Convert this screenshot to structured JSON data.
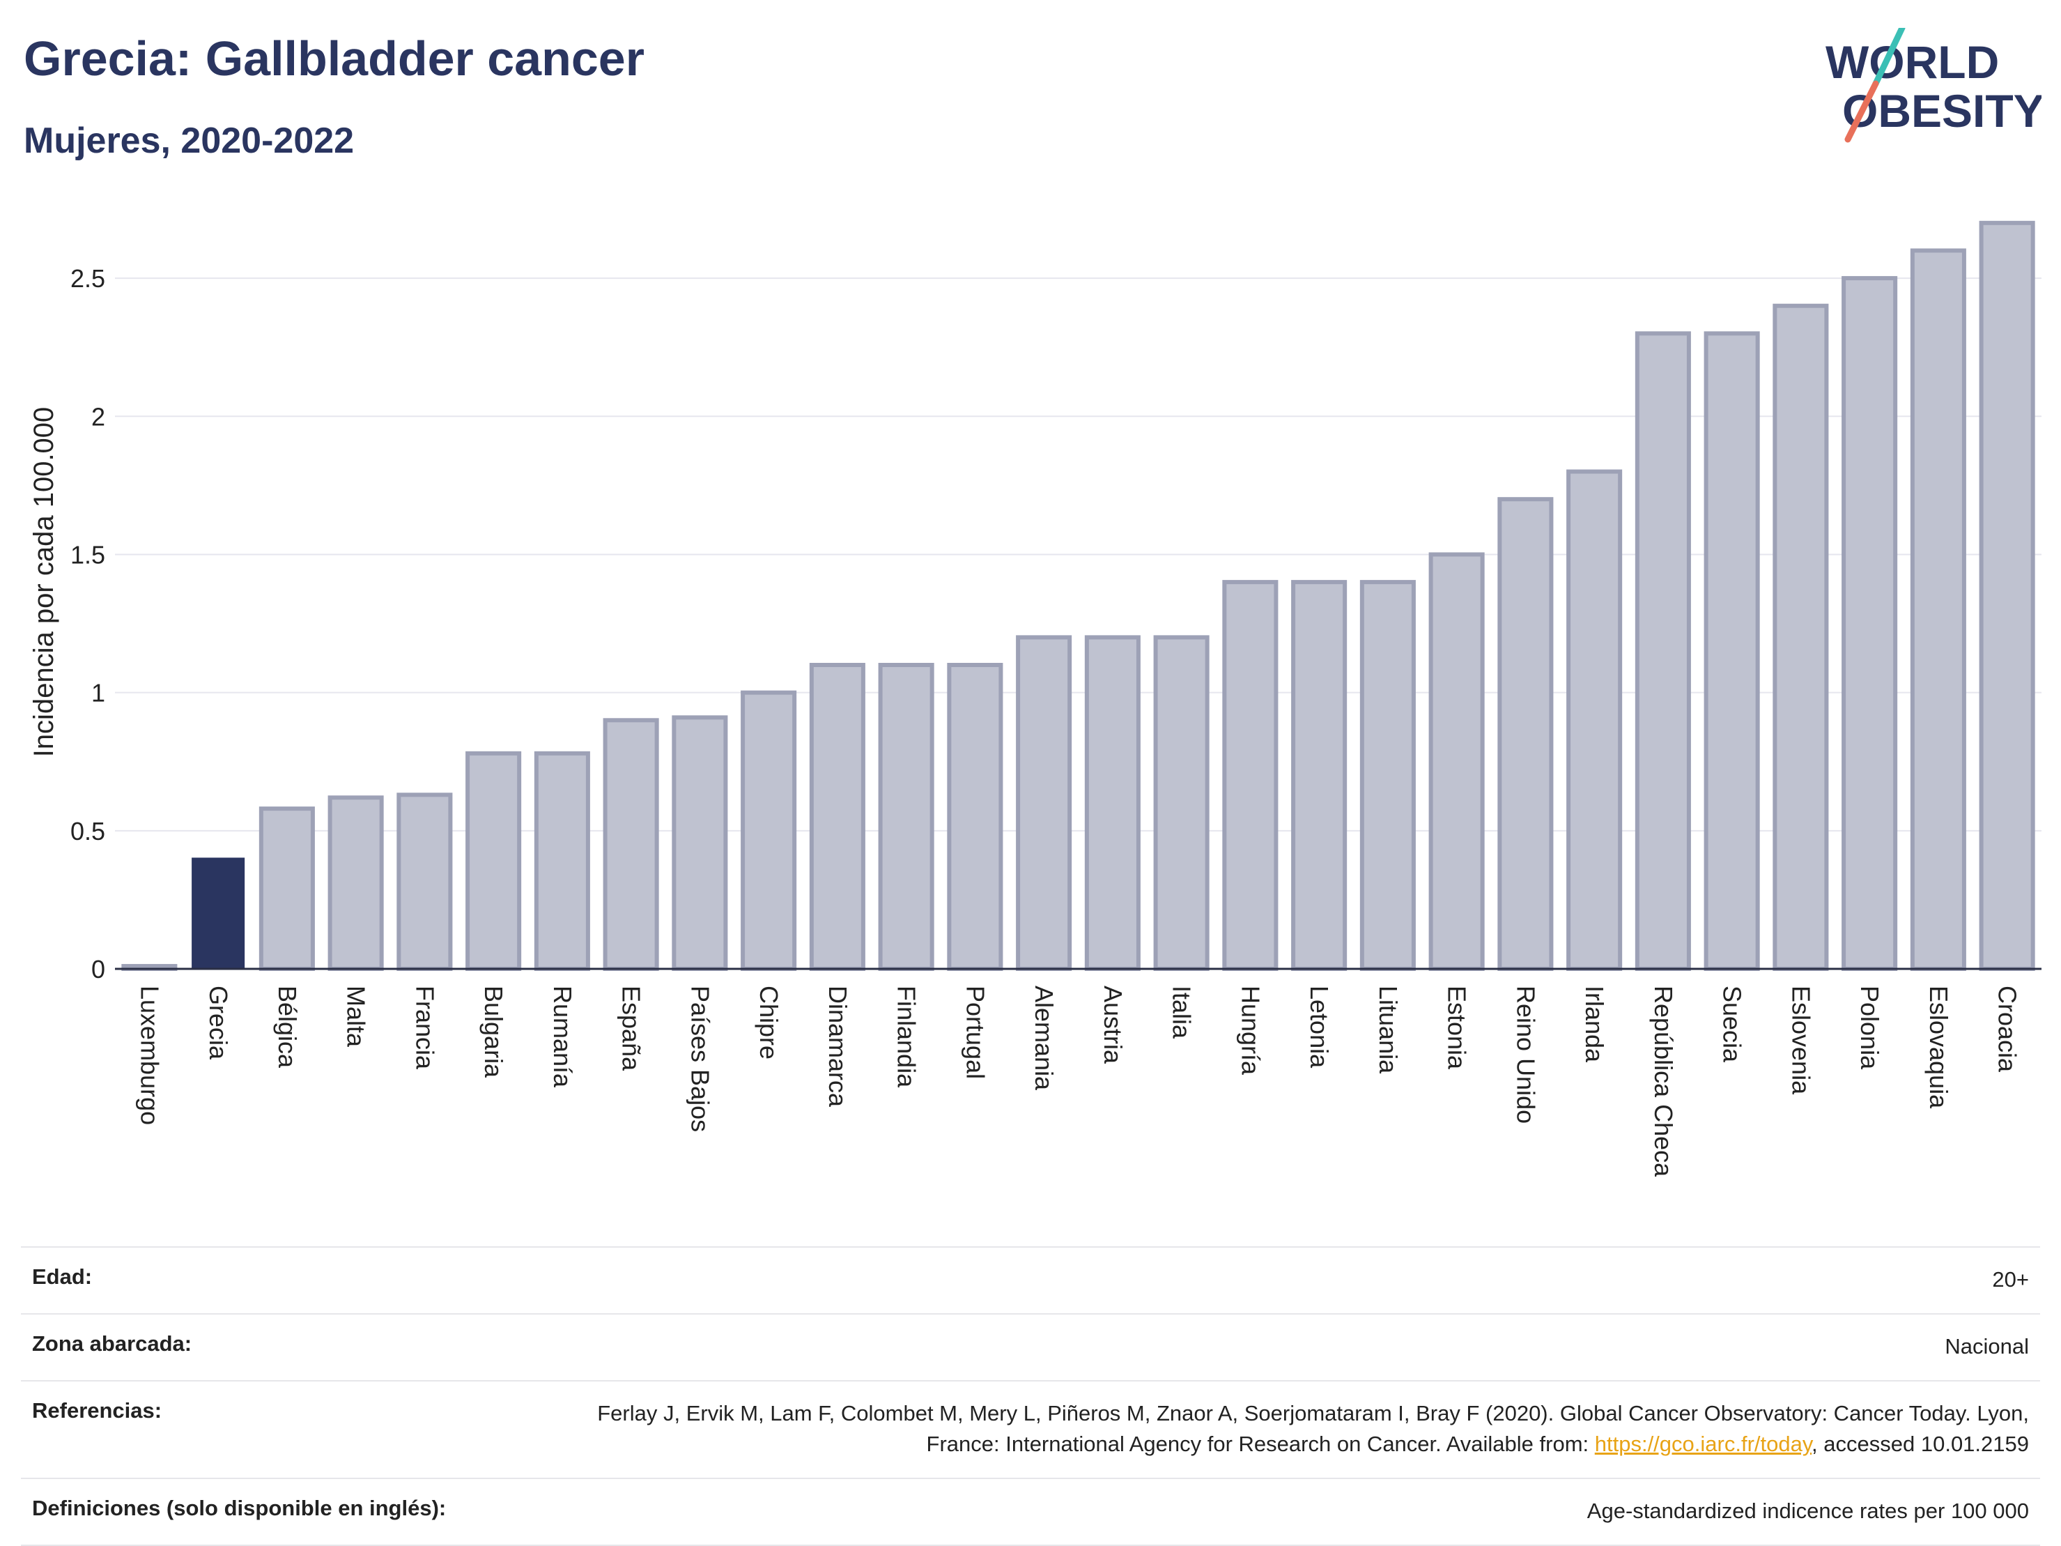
{
  "header": {
    "title": "Grecia: Gallbladder cancer",
    "subtitle": "Mujeres, 2020-2022"
  },
  "logo": {
    "line1": "WORLD",
    "line2": "OBESITY",
    "slash_color_top": "#3bbfb5",
    "slash_color_bottom": "#e8705a"
  },
  "chart_data": {
    "type": "bar",
    "title": "Grecia: Gallbladder cancer",
    "subtitle": "Mujeres, 2020-2022",
    "ylabel": "Incidencia por cada 100.000",
    "ylim": [
      0,
      2.75
    ],
    "yticks": [
      0,
      0.5,
      1,
      1.5,
      2,
      2.5
    ],
    "grid": true,
    "highlight_category": "Grecia",
    "highlight_color": "#2a3560",
    "bar_color": "#bfc2d0",
    "bar_edge_color": "#9da1b6",
    "categories": [
      "Luxemburgo",
      "Grecia",
      "Bélgica",
      "Malta",
      "Francia",
      "Bulgaria",
      "Rumanía",
      "España",
      "Países Bajos",
      "Chipre",
      "Dinamarca",
      "Finlandia",
      "Portugal",
      "Alemania",
      "Austria",
      "Italia",
      "Hungría",
      "Letonia",
      "Lituania",
      "Estonia",
      "Reino Unido",
      "Irlanda",
      "República Checa",
      "Suecia",
      "Eslovenia",
      "Polonia",
      "Eslovaquia",
      "Croacia"
    ],
    "values": [
      0.01,
      0.4,
      0.58,
      0.62,
      0.63,
      0.78,
      0.78,
      0.9,
      0.91,
      1.0,
      1.1,
      1.1,
      1.1,
      1.2,
      1.2,
      1.2,
      1.4,
      1.4,
      1.4,
      1.5,
      1.7,
      1.8,
      2.3,
      2.3,
      2.4,
      2.5,
      2.6,
      2.7
    ]
  },
  "info": {
    "age_label": "Edad:",
    "age_value": "20+",
    "zone_label": "Zona abarcada:",
    "zone_value": "Nacional",
    "refs_label": "Referencias:",
    "refs_text_1": "Ferlay J, Ervik M, Lam F, Colombet M, Mery L, Piñeros M, Znaor A, Soerjomataram I, Bray F (2020). Global Cancer Observatory: Cancer Today. Lyon, France: International Agency for Research on Cancer. Available from: ",
    "refs_link": "https://gco.iarc.fr/today",
    "refs_text_2": ", accessed 10.01.2159",
    "defs_label": "Definiciones (solo disponible en inglés):",
    "defs_value": "Age-standardized indicence rates per 100 000"
  }
}
